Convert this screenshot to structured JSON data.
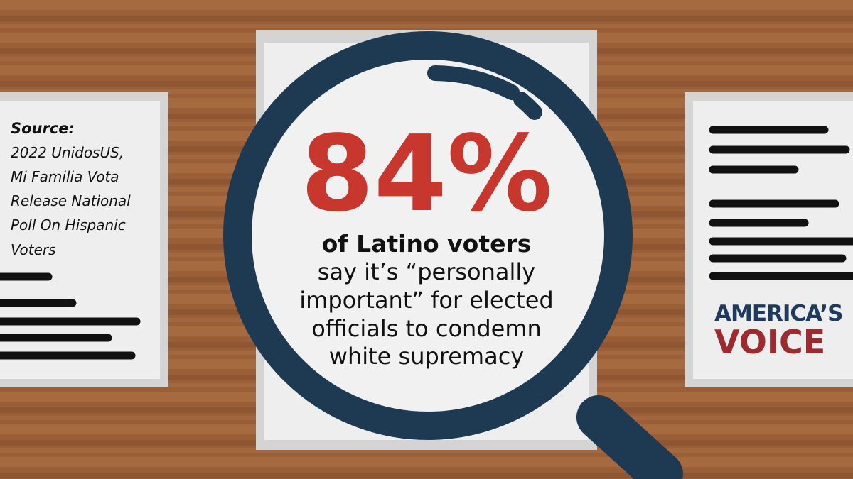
{
  "source": {
    "label": "Source:",
    "lines": [
      "2022 UnidosUS,",
      "Mi Familia Vota",
      "Release National",
      "Poll On Hispanic",
      "Voters"
    ]
  },
  "stat": {
    "value": "84%",
    "headline": "of Latino voters",
    "lines": [
      "say it’s “personally",
      "important” for elected",
      "officials to condemn",
      "white supremacy"
    ]
  },
  "logo": {
    "line1": "AMERICA’S",
    "line2": "VOICE"
  }
}
